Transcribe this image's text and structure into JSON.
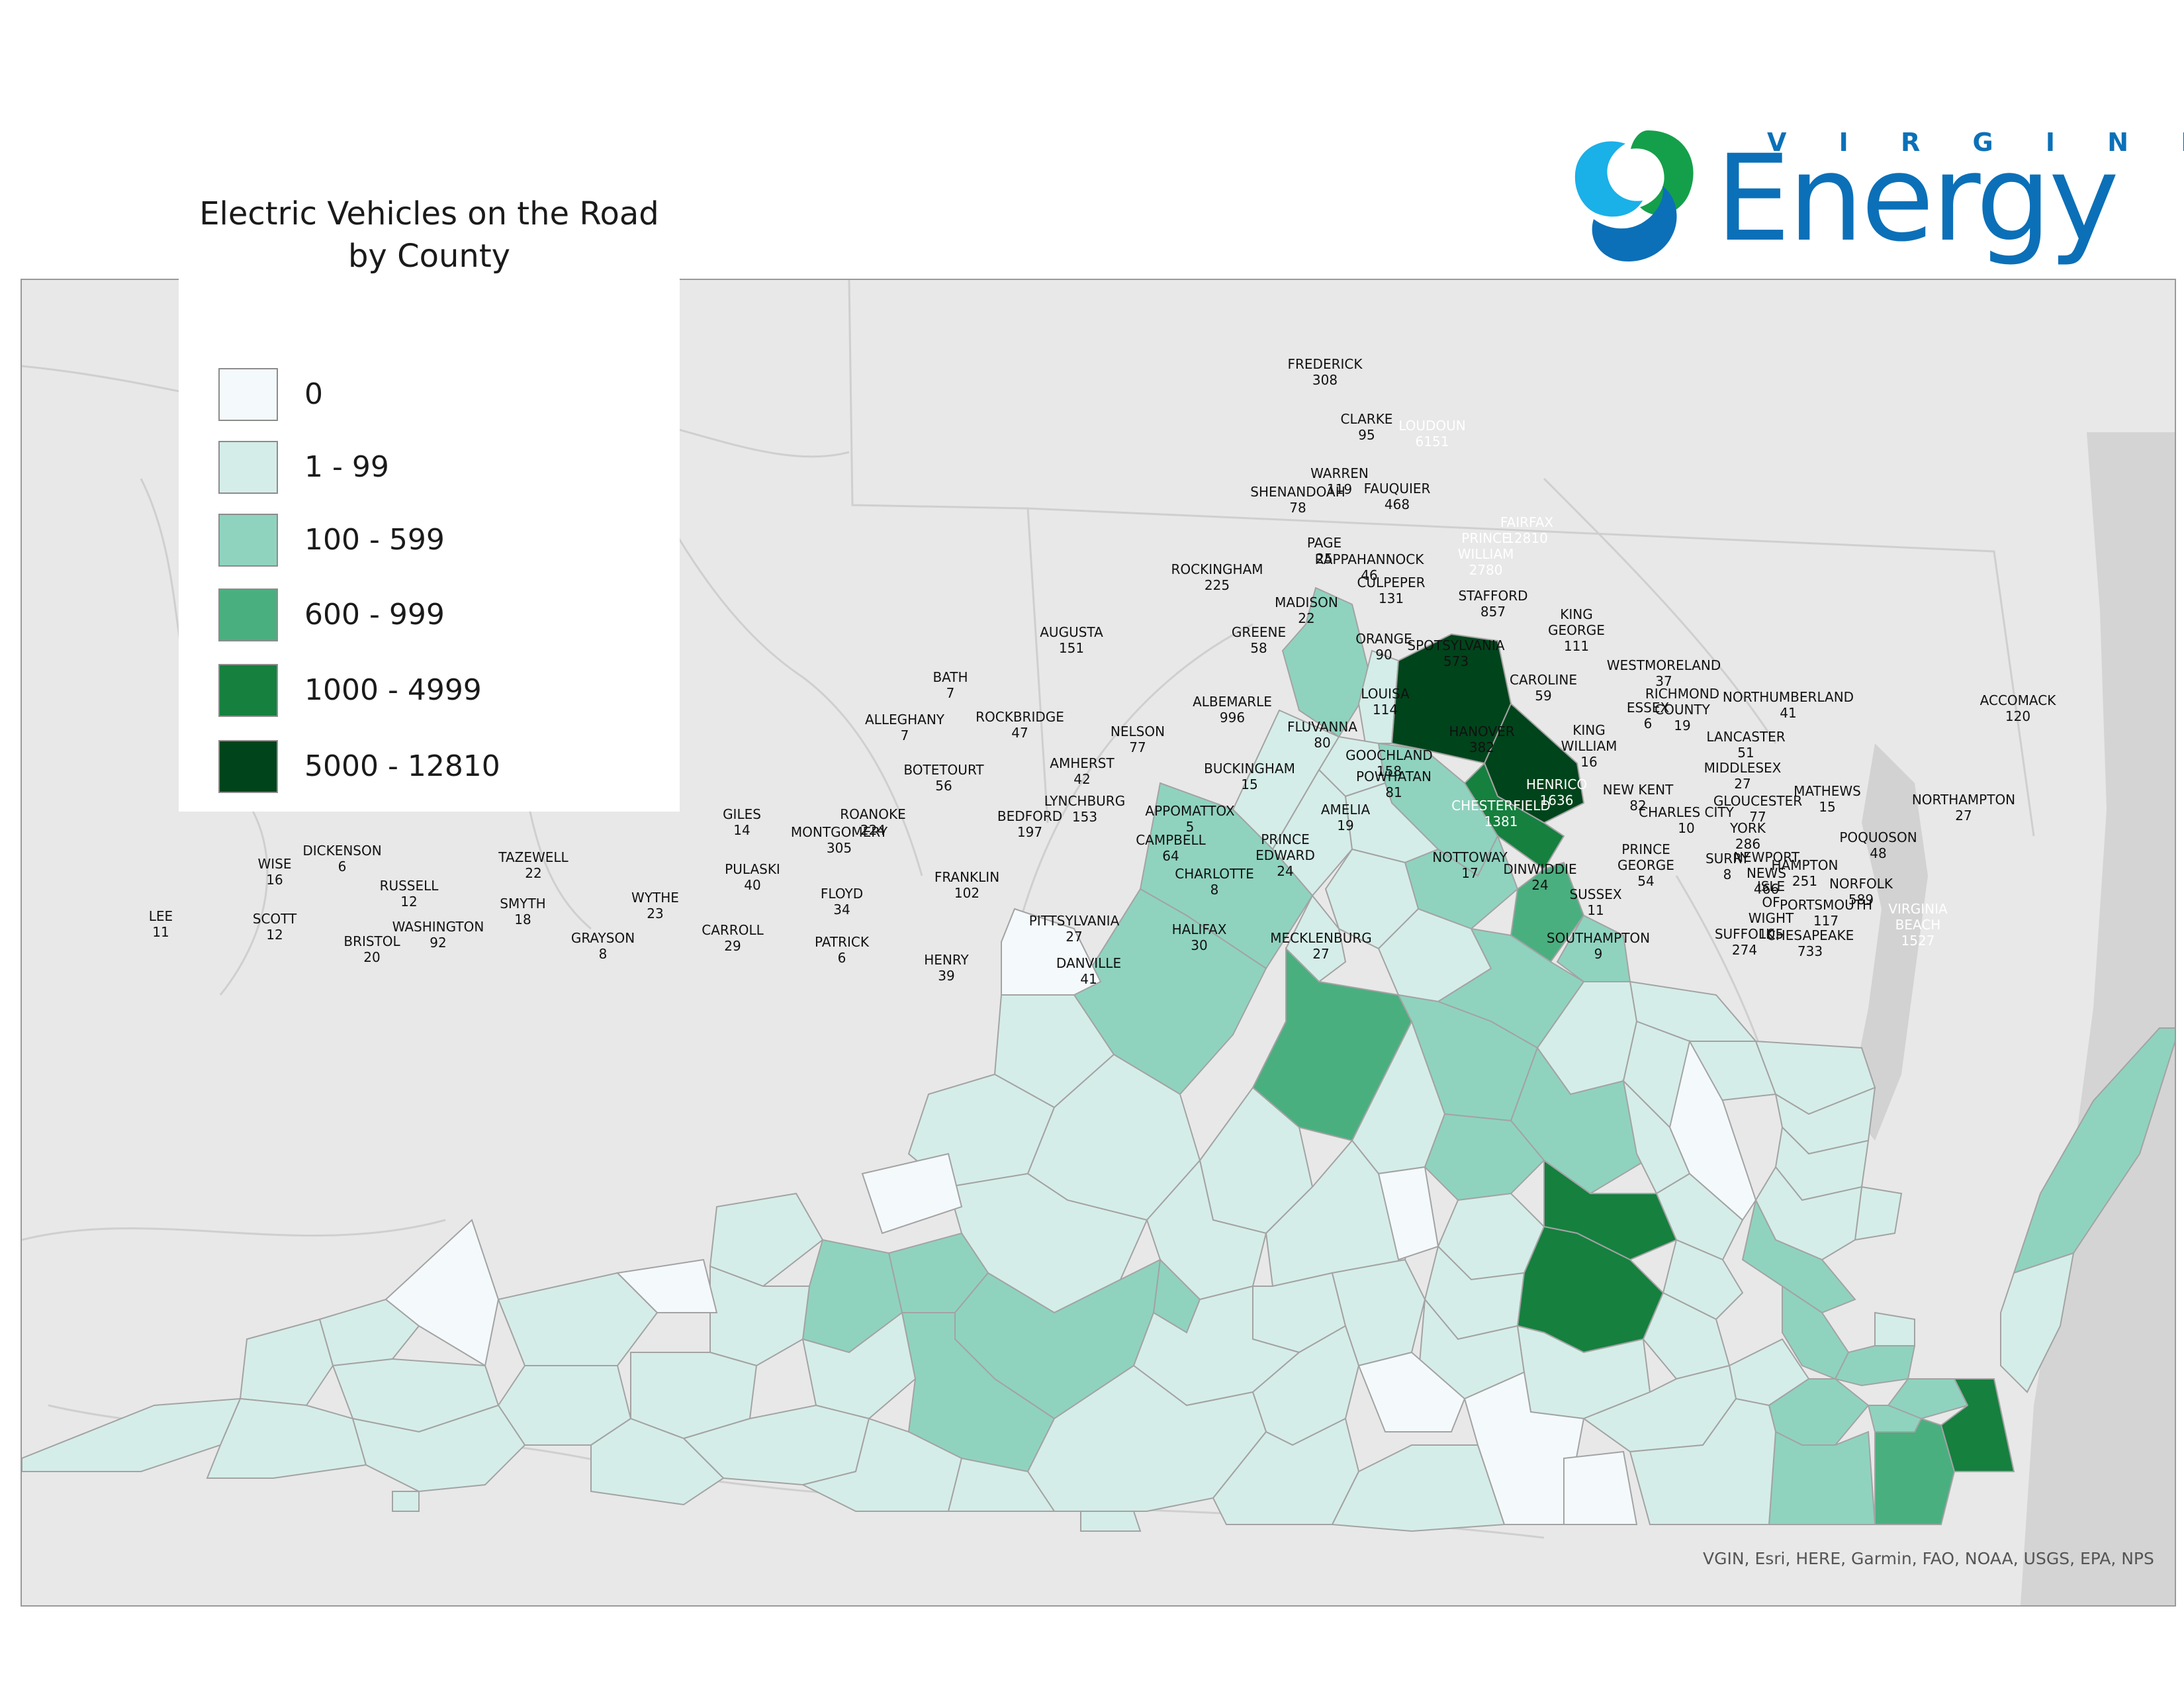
{
  "legend": {
    "title_line1": "Electric Vehicles on the Road",
    "title_line2": "by County",
    "classes": [
      {
        "label": "0",
        "color": "#f4f9fc"
      },
      {
        "label": "1 - 99",
        "color": "#d5ede8"
      },
      {
        "label": "100 - 599",
        "color": "#8fd3bf"
      },
      {
        "label": "600 - 999",
        "color": "#4aaf7f"
      },
      {
        "label": "1000 - 4999",
        "color": "#16803f"
      },
      {
        "label": "5000 - 12810",
        "color": "#00441b"
      }
    ]
  },
  "brand": {
    "top": "V I R G I N I A",
    "main": "Energy"
  },
  "attribution": "VGIN, Esri, HERE, Garmin, FAO, NOAA, USGS, EPA, NPS",
  "counties": [
    {
      "name": "FREDERICK",
      "value": "308",
      "cls": 2
    },
    {
      "name": "CLARKE",
      "value": "95",
      "cls": 1
    },
    {
      "name": "LOUDOUN",
      "value": "6151",
      "cls": 5
    },
    {
      "name": "WARREN",
      "value": "119",
      "cls": 2
    },
    {
      "name": "SHENANDOAH",
      "value": "78",
      "cls": 1
    },
    {
      "name": "FAUQUIER",
      "value": "468",
      "cls": 2
    },
    {
      "name": "FAIRFAX",
      "value": "12810",
      "cls": 5
    },
    {
      "name": "PRINCE WILLIAM",
      "value": "2780",
      "cls": 4
    },
    {
      "name": "PAGE",
      "value": "25",
      "cls": 1
    },
    {
      "name": "RAPPAHANNOCK",
      "value": "46",
      "cls": 1
    },
    {
      "name": "ROCKINGHAM",
      "value": "225",
      "cls": 2
    },
    {
      "name": "CULPEPER",
      "value": "131",
      "cls": 2
    },
    {
      "name": "STAFFORD",
      "value": "857",
      "cls": 3
    },
    {
      "name": "MADISON",
      "value": "22",
      "cls": 1
    },
    {
      "name": "KING GEORGE",
      "value": "111",
      "cls": 2
    },
    {
      "name": "GREENE",
      "value": "58",
      "cls": 1
    },
    {
      "name": "ORANGE",
      "value": "90",
      "cls": 1
    },
    {
      "name": "AUGUSTA",
      "value": "151",
      "cls": 2
    },
    {
      "name": "SPOTSYLVANIA",
      "value": "573",
      "cls": 2
    },
    {
      "name": "WESTMORELAND",
      "value": "37",
      "cls": 1
    },
    {
      "name": "BATH",
      "value": "7",
      "cls": 1
    },
    {
      "name": "CAROLINE",
      "value": "59",
      "cls": 1
    },
    {
      "name": "ALBEMARLE",
      "value": "996",
      "cls": 3
    },
    {
      "name": "LOUISA",
      "value": "114",
      "cls": 2
    },
    {
      "name": "RICHMOND COUNTY",
      "value": "19",
      "cls": 1
    },
    {
      "name": "NORTHUMBERLAND",
      "value": "41",
      "cls": 1
    },
    {
      "name": "ACCOMACK",
      "value": "120",
      "cls": 2
    },
    {
      "name": "ESSEX",
      "value": "6",
      "cls": 1
    },
    {
      "name": "ALLEGHANY",
      "value": "7",
      "cls": 1
    },
    {
      "name": "ROCKBRIDGE",
      "value": "47",
      "cls": 1
    },
    {
      "name": "FLUVANNA",
      "value": "80",
      "cls": 1
    },
    {
      "name": "HANOVER",
      "value": "382",
      "cls": 2
    },
    {
      "name": "KING WILLIAM",
      "value": "16",
      "cls": 1
    },
    {
      "name": "LANCASTER",
      "value": "51",
      "cls": 1
    },
    {
      "name": "NELSON",
      "value": "77",
      "cls": 1
    },
    {
      "name": "GOOCHLAND",
      "value": "158",
      "cls": 2
    },
    {
      "name": "MIDDLESEX",
      "value": "27",
      "cls": 1
    },
    {
      "name": "AMHERST",
      "value": "42",
      "cls": 1
    },
    {
      "name": "BOTETOURT",
      "value": "56",
      "cls": 1
    },
    {
      "name": "BUCKINGHAM",
      "value": "15",
      "cls": 1
    },
    {
      "name": "POWHATAN",
      "value": "81",
      "cls": 1
    },
    {
      "name": "HENRICO",
      "value": "1636",
      "cls": 4
    },
    {
      "name": "NEW KENT",
      "value": "82",
      "cls": 1
    },
    {
      "name": "MATHEWS",
      "value": "15",
      "cls": 1
    },
    {
      "name": "GLOUCESTER",
      "value": "77",
      "cls": 1
    },
    {
      "name": "NORTHAMPTON",
      "value": "27",
      "cls": 1
    },
    {
      "name": "LYNCHBURG",
      "value": "153",
      "cls": 2
    },
    {
      "name": "AMELIA",
      "value": "19",
      "cls": 1
    },
    {
      "name": "CHESTERFIELD",
      "value": "1381",
      "cls": 4
    },
    {
      "name": "CHARLES CITY",
      "value": "10",
      "cls": 1
    },
    {
      "name": "APPOMATTOX",
      "value": "5",
      "cls": 1
    },
    {
      "name": "GILES",
      "value": "14",
      "cls": 1
    },
    {
      "name": "ROANOKE",
      "value": "224",
      "cls": 2
    },
    {
      "name": "BEDFORD",
      "value": "197",
      "cls": 2
    },
    {
      "name": "YORK",
      "value": "286",
      "cls": 2
    },
    {
      "name": "MONTGOMERY",
      "value": "305",
      "cls": 2
    },
    {
      "name": "PRINCE EDWARD",
      "value": "24",
      "cls": 1
    },
    {
      "name": "CAMPBELL",
      "value": "64",
      "cls": 1
    },
    {
      "name": "POQUOSON",
      "value": "48",
      "cls": 1
    },
    {
      "name": "PRINCE GEORGE",
      "value": "54",
      "cls": 1
    },
    {
      "name": "DICKENSON",
      "value": "6",
      "cls": 1
    },
    {
      "name": "TAZEWELL",
      "value": "22",
      "cls": 1
    },
    {
      "name": "NOTTOWAY",
      "value": "17",
      "cls": 1
    },
    {
      "name": "SURRY",
      "value": "8",
      "cls": 1
    },
    {
      "name": "NEWPORT NEWS",
      "value": "466",
      "cls": 2
    },
    {
      "name": "HAMPTON",
      "value": "251",
      "cls": 2
    },
    {
      "name": "WISE",
      "value": "16",
      "cls": 1
    },
    {
      "name": "PULASKI",
      "value": "40",
      "cls": 1
    },
    {
      "name": "DINWIDDIE",
      "value": "24",
      "cls": 1
    },
    {
      "name": "CHARLOTTE",
      "value": "8",
      "cls": 1
    },
    {
      "name": "FRANKLIN",
      "value": "102",
      "cls": 2
    },
    {
      "name": "NORFOLK",
      "value": "589",
      "cls": 2
    },
    {
      "name": "RUSSELL",
      "value": "12",
      "cls": 1
    },
    {
      "name": "FLOYD",
      "value": "34",
      "cls": 1
    },
    {
      "name": "ISLE OF WIGHT",
      "value": "105",
      "cls": 2
    },
    {
      "name": "SUSSEX",
      "value": "11",
      "cls": 1
    },
    {
      "name": "WYTHE",
      "value": "23",
      "cls": 1
    },
    {
      "name": "SMYTH",
      "value": "18",
      "cls": 1
    },
    {
      "name": "PORTSMOUTH",
      "value": "117",
      "cls": 2
    },
    {
      "name": "VIRGINIA BEACH",
      "value": "1527",
      "cls": 4
    },
    {
      "name": "LEE",
      "value": "11",
      "cls": 1
    },
    {
      "name": "SCOTT",
      "value": "12",
      "cls": 1
    },
    {
      "name": "WASHINGTON",
      "value": "92",
      "cls": 1
    },
    {
      "name": "PITTSYLVANIA",
      "value": "27",
      "cls": 1
    },
    {
      "name": "CARROLL",
      "value": "29",
      "cls": 1
    },
    {
      "name": "HALIFAX",
      "value": "30",
      "cls": 1
    },
    {
      "name": "SUFFOLK",
      "value": "274",
      "cls": 2
    },
    {
      "name": "CHESAPEAKE",
      "value": "733",
      "cls": 3
    },
    {
      "name": "MECKLENBURG",
      "value": "27",
      "cls": 1
    },
    {
      "name": "SOUTHAMPTON",
      "value": "9",
      "cls": 1
    },
    {
      "name": "BRISTOL",
      "value": "20",
      "cls": 1
    },
    {
      "name": "GRAYSON",
      "value": "8",
      "cls": 1
    },
    {
      "name": "PATRICK",
      "value": "6",
      "cls": 1
    },
    {
      "name": "HENRY",
      "value": "39",
      "cls": 1
    },
    {
      "name": "DANVILLE",
      "value": "41",
      "cls": 1
    }
  ]
}
